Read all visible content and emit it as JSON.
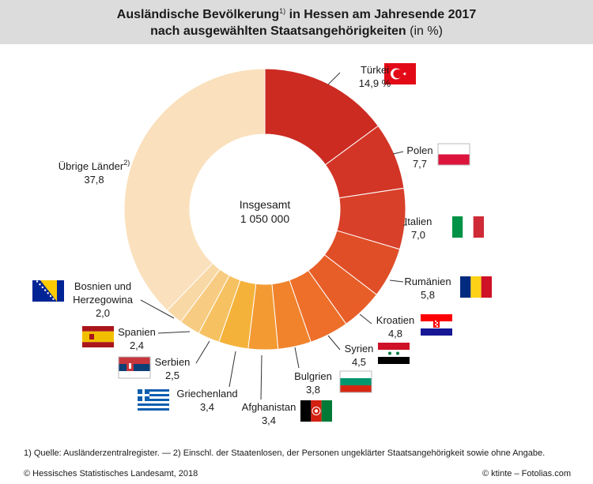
{
  "title": {
    "line1_main": "Ausländische Bevölkerung",
    "line1_sup": "1)",
    "line1_rest": " in Hessen am Jahresende 2017",
    "line2_main": "nach ausgewählten Staatsangehörigkeiten",
    "line2_rest": " (in %)"
  },
  "center": {
    "label": "Insgesamt",
    "value": "1 050 000"
  },
  "chart_data": {
    "type": "pie",
    "donut": true,
    "title": "Ausländische Bevölkerung in Hessen am Jahresende 2017 nach ausgewählten Staatsangehörigkeiten (in %)",
    "unit": "%",
    "total": "1 050 000",
    "categories": [
      "Türkei",
      "Polen",
      "Italien",
      "Rumänien",
      "Kroatien",
      "Syrien",
      "Bulgrien",
      "Afghanistan",
      "Griechenland",
      "Serbien",
      "Spanien",
      "Bosnien und Herzegowina",
      "Übrige Länder"
    ],
    "values": [
      14.9,
      7.7,
      7.0,
      5.8,
      4.8,
      4.5,
      3.8,
      3.4,
      3.4,
      2.5,
      2.4,
      2.0,
      37.8
    ],
    "value_labels": [
      "14,9 %",
      "7,7",
      "7,0",
      "5,8",
      "4,8",
      "4,5",
      "3,8",
      "3,4",
      "3,4",
      "2,5",
      "2,4",
      "2,0",
      "37,8"
    ],
    "colors": [
      "#cc2b22",
      "#d23526",
      "#d8402a",
      "#e04e28",
      "#e85e28",
      "#ed6f2a",
      "#f0832c",
      "#f39a33",
      "#f5b23a",
      "#f6c160",
      "#f7cc82",
      "#f8d8a4",
      "#fae0bc"
    ],
    "label_sup": {
      "Übrige Länder": "2)"
    }
  },
  "footnote": "1) Quelle: Ausländerzentralregister. —  2) Einschl. der Staatenlosen, der Personen ungeklärter Staatsangehörigkeit sowie ohne Angabe.",
  "credits": {
    "left": "© Hessisches Statistisches Landesamt, 2018",
    "right": "© ktinte – Fotolias.com"
  },
  "flags": [
    "turkey-flag-icon",
    "poland-flag-icon",
    "italy-flag-icon",
    "romania-flag-icon",
    "croatia-flag-icon",
    "syria-flag-icon",
    "bulgaria-flag-icon",
    "afghanistan-flag-icon",
    "greece-flag-icon",
    "serbia-flag-icon",
    "spain-flag-icon",
    "bosnia-flag-icon"
  ]
}
